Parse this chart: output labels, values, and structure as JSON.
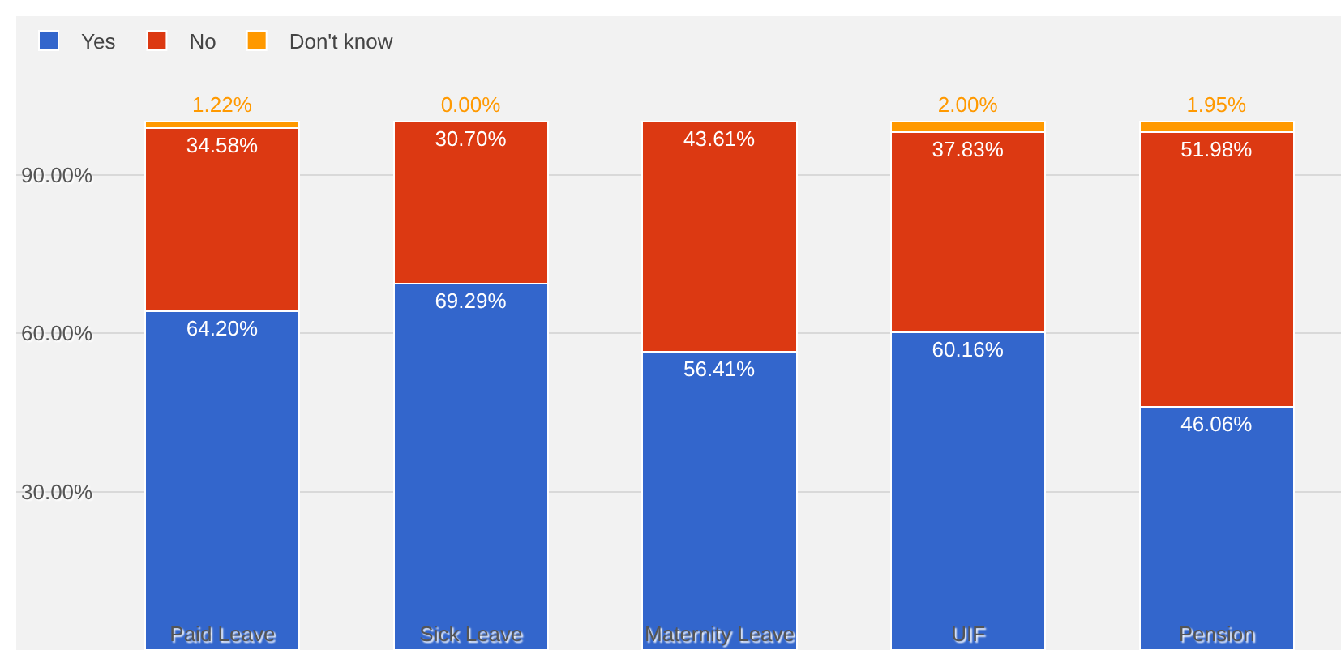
{
  "chart_data": {
    "type": "bar",
    "stacked": true,
    "categories": [
      "Paid Leave",
      "Sick Leave",
      "Maternity Leave",
      "UIF",
      "Pension"
    ],
    "series": [
      {
        "name": "Yes",
        "color": "#3366cc",
        "values": [
          64.2,
          69.29,
          56.41,
          60.16,
          46.06
        ],
        "value_labels": [
          "64.20%",
          "69.29%",
          "56.41%",
          "60.16%",
          "46.06%"
        ]
      },
      {
        "name": "No",
        "color": "#dc3912",
        "values": [
          34.58,
          30.7,
          43.61,
          37.83,
          51.98
        ],
        "value_labels": [
          "34.58%",
          "30.70%",
          "43.61%",
          "37.83%",
          "51.98%"
        ]
      },
      {
        "name": "Don't know",
        "color": "#ff9900",
        "values": [
          1.22,
          0.0,
          null,
          2.0,
          1.95
        ],
        "value_labels": [
          "1.22%",
          "0.00%",
          null,
          "2.00%",
          "1.95%"
        ]
      }
    ],
    "ylim": [
      0,
      120
    ],
    "yticks": [
      {
        "value": 30,
        "label": "30.00%"
      },
      {
        "value": 60,
        "label": "60.00%"
      },
      {
        "value": 90,
        "label": "90.00%"
      }
    ],
    "grid": "y",
    "legend": "top left"
  }
}
